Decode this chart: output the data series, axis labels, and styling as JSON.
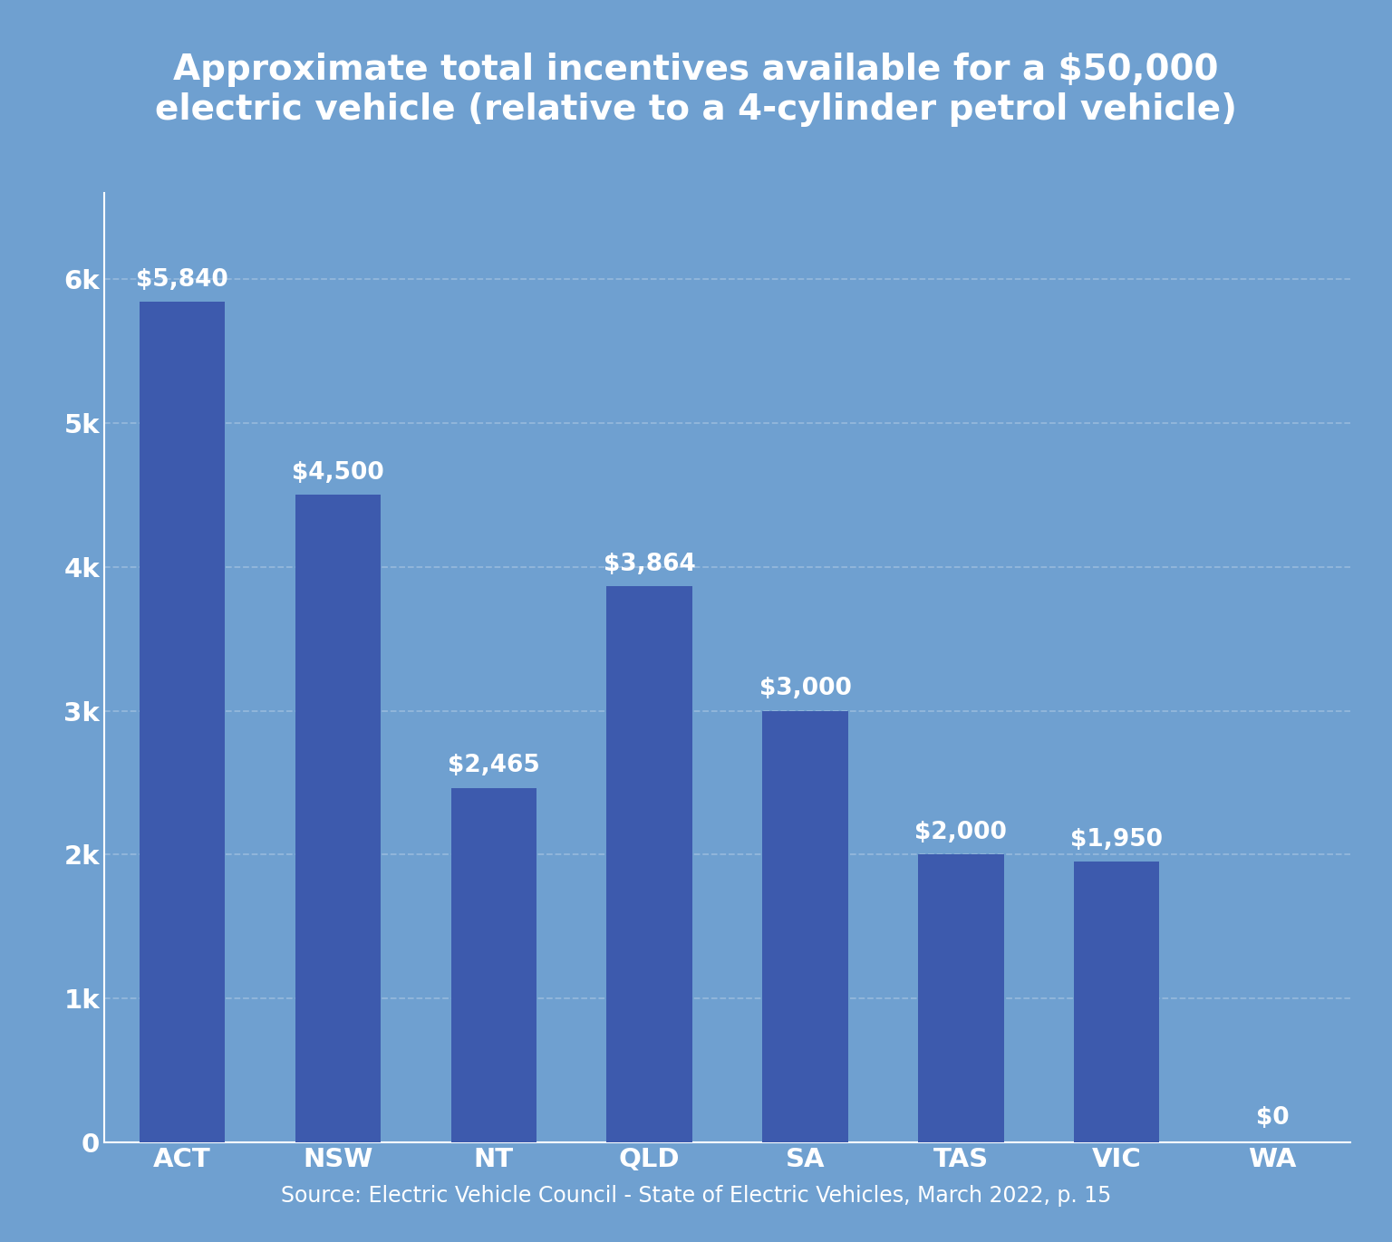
{
  "title": "Approximate total incentives available for a $50,000\nelectric vehicle (relative to a 4-cylinder petrol vehicle)",
  "categories": [
    "ACT",
    "NSW",
    "NT",
    "QLD",
    "SA",
    "TAS",
    "VIC",
    "WA"
  ],
  "values": [
    5840,
    4500,
    2465,
    3864,
    3000,
    2000,
    1950,
    0
  ],
  "labels": [
    "$5,840",
    "$4,500",
    "$2,465",
    "$3,864",
    "$3,000",
    "$2,000",
    "$1,950",
    "$0"
  ],
  "bar_color": "#3d5aad",
  "background_color": "#6fa0d0",
  "title_bg_color": "#4a5faa",
  "outer_bg_color": "#6fa0d0",
  "title_color": "#ffffff",
  "tick_label_color": "#ffffff",
  "bar_label_color": "#ffffff",
  "grid_color": "#94b8dc",
  "footer_text": "Source: Electric Vehicle Council - State of Electric Vehicles, March 2022, p. 15",
  "footer_color": "#ffffff",
  "ylim": [
    0,
    6600
  ],
  "yticks": [
    0,
    1000,
    2000,
    3000,
    4000,
    5000,
    6000
  ],
  "ytick_labels": [
    "0",
    "1k",
    "2k",
    "3k",
    "4k",
    "5k",
    "6k"
  ],
  "title_fontsize": 28,
  "tick_fontsize": 21,
  "bar_label_fontsize": 19,
  "footer_fontsize": 17
}
